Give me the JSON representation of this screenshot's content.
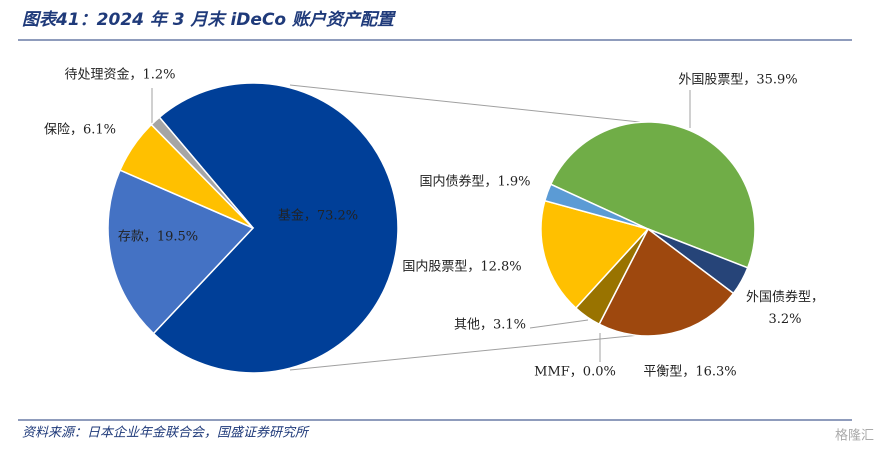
{
  "title": "图表41：2024 年 3 月末 iDeCo 账户资产配置",
  "source": "资料来源：日本企业年金联合会，国盛证券研究所",
  "watermark": "格隆汇",
  "chart_data": [
    {
      "type": "pie",
      "value_labels": [
        "基金，73.2%",
        "存款，19.5%",
        "保险，6.1%",
        "待处理资金，1.2%"
      ],
      "values": [
        73.2,
        19.5,
        6.1,
        1.2
      ],
      "colors": [
        "#003f98",
        "#4472c4",
        "#ffc000",
        "#a5a5a5"
      ]
    },
    {
      "type": "pie",
      "value_labels": [
        "外国股票型，35.9%",
        "外国债券型，\n3.2%",
        "平衡型，16.3%",
        "MMF，0.0%",
        "其他，3.1%",
        "国内股票型，12.8%",
        "国内债券型，1.9%"
      ],
      "values": [
        35.9,
        3.2,
        16.3,
        0.0,
        3.1,
        12.8,
        1.9
      ],
      "colors": [
        "#70ad47",
        "#264478",
        "#9e480e",
        "#7f7f7f",
        "#997300",
        "#ffc000",
        "#5b9bd5"
      ]
    }
  ]
}
